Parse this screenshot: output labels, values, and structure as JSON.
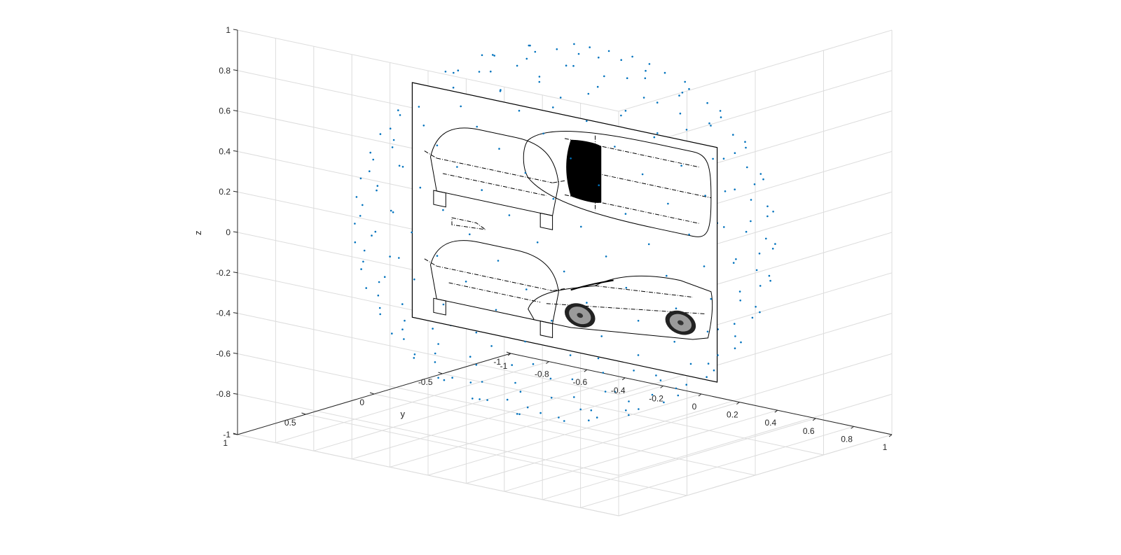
{
  "chart_data": {
    "type": "scatter3d",
    "title": "",
    "xlabel": "",
    "ylabel": "y",
    "zlabel": "z",
    "xlim": [
      -1,
      1
    ],
    "ylim": [
      -1,
      1
    ],
    "zlim": [
      -1,
      1
    ],
    "grid": true,
    "x_ticks": [
      "-1",
      "-0.8",
      "-0.6",
      "-0.4",
      "-0.2",
      "0",
      "0.2",
      "0.4",
      "0.6",
      "0.8",
      "1"
    ],
    "y_ticks": [
      "-1",
      "-0.5",
      "0",
      "0.5",
      "1"
    ],
    "z_ticks": [
      "-1",
      "-0.8",
      "-0.6",
      "-0.4",
      "-0.2",
      "0",
      "0.2",
      "0.4",
      "0.6",
      "0.8",
      "1"
    ],
    "points_description": "Points sampled on a unit sphere of radius 0.9, plotted as small blue dots",
    "marker_color": "#0072BD",
    "image_plane": {
      "description": "Textured planar image (line drawing of a sports car: front, top, rear and side views) mapped on a plane through the sphere center",
      "x_range": [
        -0.8,
        0.8
      ],
      "z_range": [
        -0.58,
        0.58
      ],
      "y_value": 0
    }
  },
  "colors": {
    "points": "#0072BD",
    "grid": "#dcdcdc",
    "axes": "#262626"
  }
}
